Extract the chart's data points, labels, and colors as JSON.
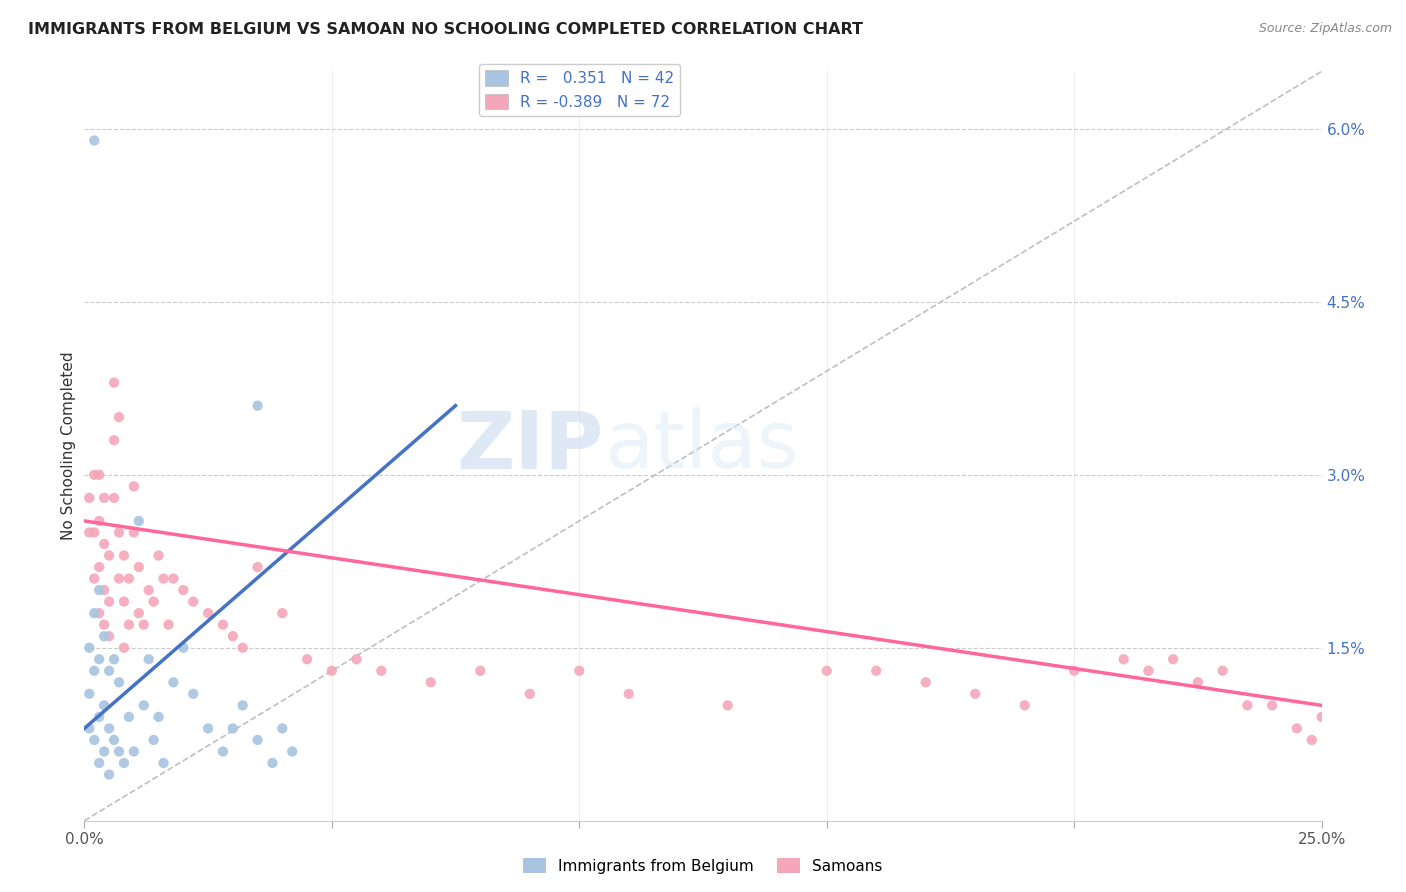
{
  "title": "IMMIGRANTS FROM BELGIUM VS SAMOAN NO SCHOOLING COMPLETED CORRELATION CHART",
  "source": "Source: ZipAtlas.com",
  "ylabel": "No Schooling Completed",
  "legend_blue_label": "Immigrants from Belgium",
  "legend_pink_label": "Samoans",
  "R_blue": 0.351,
  "N_blue": 42,
  "R_pink": -0.389,
  "N_pink": 72,
  "blue_color": "#a8c4e0",
  "pink_color": "#f4a7b9",
  "blue_line_color": "#4472C4",
  "pink_line_color": "#FF6699",
  "diagonal_color": "#b8b8b8",
  "watermark_zip": "ZIP",
  "watermark_atlas": "atlas",
  "xlim": [
    0.0,
    0.25
  ],
  "ylim": [
    0.0,
    0.065
  ],
  "blue_x": [
    0.001,
    0.001,
    0.001,
    0.002,
    0.002,
    0.002,
    0.003,
    0.003,
    0.003,
    0.003,
    0.004,
    0.004,
    0.004,
    0.005,
    0.005,
    0.005,
    0.006,
    0.006,
    0.007,
    0.007,
    0.008,
    0.009,
    0.01,
    0.011,
    0.012,
    0.013,
    0.014,
    0.015,
    0.016,
    0.018,
    0.02,
    0.022,
    0.025,
    0.028,
    0.03,
    0.032,
    0.035,
    0.038,
    0.04,
    0.042,
    0.002,
    0.035
  ],
  "blue_y": [
    0.008,
    0.011,
    0.015,
    0.007,
    0.013,
    0.018,
    0.005,
    0.009,
    0.014,
    0.02,
    0.006,
    0.01,
    0.016,
    0.004,
    0.008,
    0.013,
    0.007,
    0.014,
    0.006,
    0.012,
    0.005,
    0.009,
    0.006,
    0.026,
    0.01,
    0.014,
    0.007,
    0.009,
    0.005,
    0.012,
    0.015,
    0.011,
    0.008,
    0.006,
    0.008,
    0.01,
    0.007,
    0.005,
    0.008,
    0.006,
    0.059,
    0.036
  ],
  "pink_x": [
    0.001,
    0.001,
    0.002,
    0.002,
    0.002,
    0.003,
    0.003,
    0.003,
    0.003,
    0.004,
    0.004,
    0.004,
    0.004,
    0.005,
    0.005,
    0.005,
    0.006,
    0.006,
    0.006,
    0.007,
    0.007,
    0.007,
    0.008,
    0.008,
    0.008,
    0.009,
    0.009,
    0.01,
    0.01,
    0.011,
    0.011,
    0.012,
    0.013,
    0.014,
    0.015,
    0.016,
    0.017,
    0.018,
    0.02,
    0.022,
    0.025,
    0.028,
    0.03,
    0.032,
    0.035,
    0.04,
    0.045,
    0.05,
    0.055,
    0.06,
    0.07,
    0.08,
    0.09,
    0.1,
    0.11,
    0.13,
    0.15,
    0.16,
    0.17,
    0.18,
    0.19,
    0.2,
    0.21,
    0.215,
    0.22,
    0.225,
    0.23,
    0.235,
    0.24,
    0.245,
    0.248,
    0.25
  ],
  "pink_y": [
    0.025,
    0.028,
    0.021,
    0.025,
    0.03,
    0.018,
    0.022,
    0.026,
    0.03,
    0.017,
    0.02,
    0.024,
    0.028,
    0.016,
    0.019,
    0.023,
    0.028,
    0.033,
    0.038,
    0.021,
    0.025,
    0.035,
    0.015,
    0.019,
    0.023,
    0.017,
    0.021,
    0.025,
    0.029,
    0.018,
    0.022,
    0.017,
    0.02,
    0.019,
    0.023,
    0.021,
    0.017,
    0.021,
    0.02,
    0.019,
    0.018,
    0.017,
    0.016,
    0.015,
    0.022,
    0.018,
    0.014,
    0.013,
    0.014,
    0.013,
    0.012,
    0.013,
    0.011,
    0.013,
    0.011,
    0.01,
    0.013,
    0.013,
    0.012,
    0.011,
    0.01,
    0.013,
    0.014,
    0.013,
    0.014,
    0.012,
    0.013,
    0.01,
    0.01,
    0.008,
    0.007,
    0.009
  ],
  "blue_line_x": [
    0.0,
    0.075
  ],
  "blue_line_y": [
    0.008,
    0.036
  ],
  "pink_line_x": [
    0.0,
    0.25
  ],
  "pink_line_y": [
    0.026,
    0.01
  ]
}
